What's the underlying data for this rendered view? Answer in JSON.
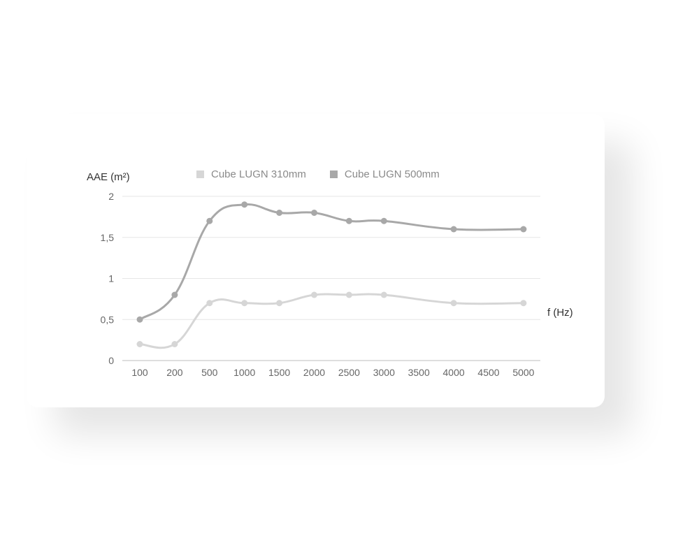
{
  "chart_data": {
    "type": "line",
    "categories": [
      "100",
      "200",
      "500",
      "1000",
      "1500",
      "2000",
      "2500",
      "3000",
      "3500",
      "4000",
      "4500",
      "5000"
    ],
    "xlabel": "f (Hz)",
    "ylabel": "AAE (m²)",
    "ylim": [
      0,
      2
    ],
    "yticks": [
      "0",
      "0,5",
      "1",
      "1,5",
      "2"
    ],
    "grid": true,
    "legend_position": "top",
    "series": [
      {
        "name": "Cube LUGN 310mm",
        "color": "#d6d6d6",
        "values": [
          0.2,
          0.2,
          0.7,
          0.7,
          0.7,
          0.8,
          0.8,
          0.8,
          null,
          0.7,
          null,
          0.7
        ]
      },
      {
        "name": "Cube LUGN 500mm",
        "color": "#a8a8a8",
        "values": [
          0.5,
          0.8,
          1.7,
          1.9,
          1.8,
          1.8,
          1.7,
          1.7,
          null,
          1.6,
          null,
          1.6
        ]
      }
    ]
  }
}
